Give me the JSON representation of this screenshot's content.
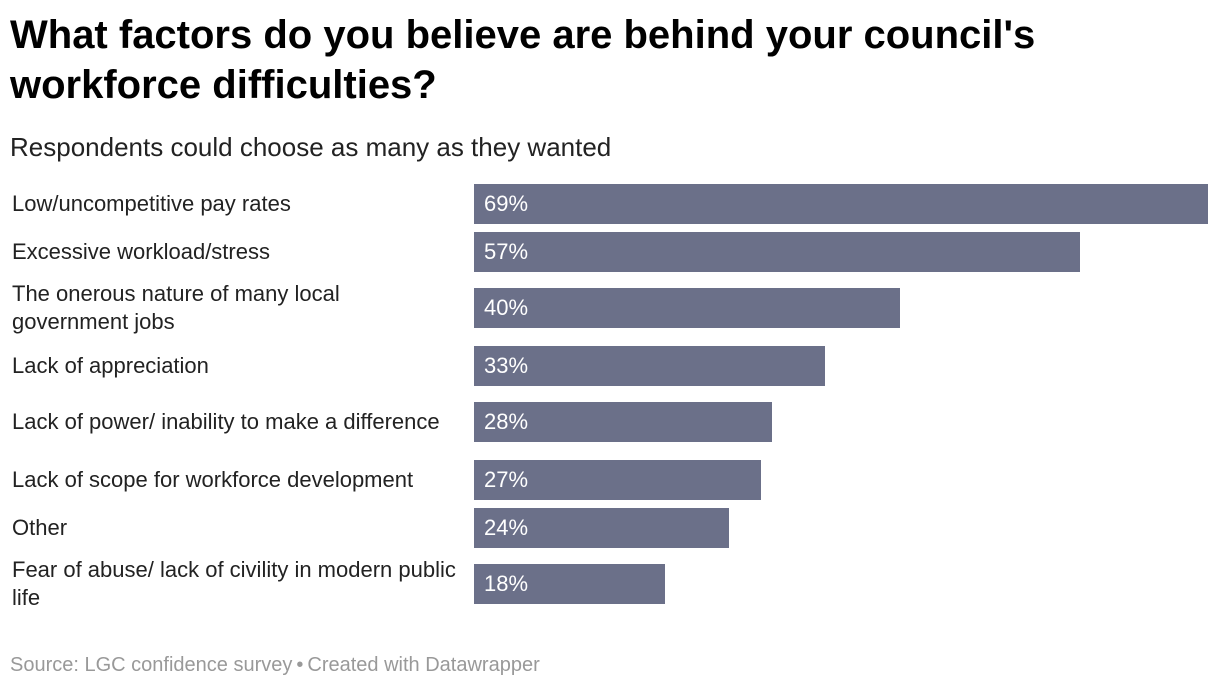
{
  "title": "What factors do you believe are behind your council's workforce difficulties?",
  "subtitle": "Respondents could choose as many as they wanted",
  "colors": {
    "bar": "#6b7089",
    "bar_label": "#ffffff",
    "footer": "#999999"
  },
  "chart_data": {
    "type": "bar",
    "orientation": "horizontal",
    "title": "What factors do you believe are behind your council's workforce difficulties?",
    "subtitle": "Respondents could choose as many as they wanted",
    "categories": [
      "Low/uncompetitive pay rates",
      "Excessive workload/stress",
      "The onerous nature of many local government jobs",
      "Lack of appreciation",
      "Lack of power/ inability to make a difference",
      "Lack of scope for workforce development",
      "Other",
      "Fear of abuse/ lack of civility in modern public life"
    ],
    "values": [
      69,
      57,
      40,
      33,
      28,
      27,
      24,
      18
    ],
    "value_labels": [
      "69%",
      "57%",
      "40%",
      "33%",
      "28%",
      "27%",
      "24%",
      "18%"
    ],
    "xlim": [
      0,
      69
    ],
    "unit": "%"
  },
  "footer": {
    "source": "Source: LGC confidence survey",
    "separator": "•",
    "credit": "Created with Datawrapper"
  }
}
